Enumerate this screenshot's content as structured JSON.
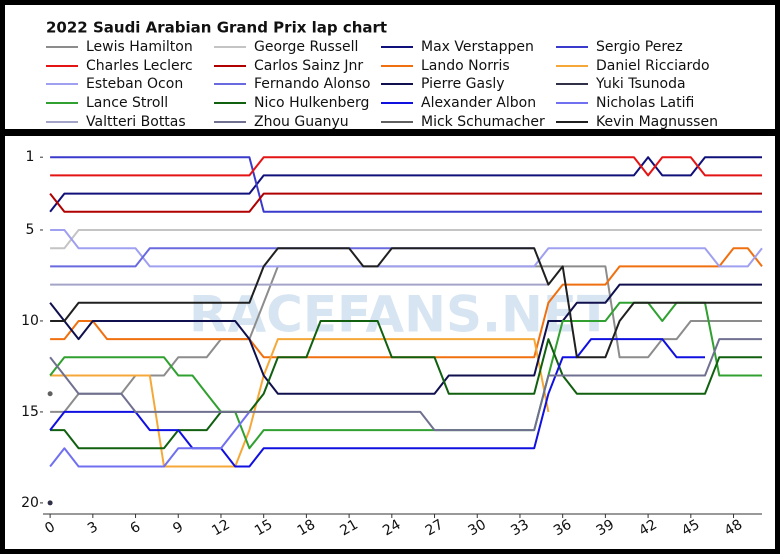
{
  "chart_data": {
    "type": "line",
    "title": "2022 Saudi Arabian Grand Prix lap chart",
    "watermark": "RACEFANS.NET",
    "xlim": [
      -0.5,
      50
    ],
    "xticks": [
      0,
      3,
      6,
      9,
      12,
      15,
      18,
      21,
      24,
      27,
      30,
      33,
      36,
      39,
      42,
      45,
      48
    ],
    "ylim": [
      20.5,
      0
    ],
    "yticks": [
      1,
      5,
      10,
      15,
      20
    ],
    "x": [
      0,
      1,
      2,
      3,
      4,
      5,
      6,
      7,
      8,
      9,
      10,
      11,
      12,
      13,
      14,
      15,
      16,
      17,
      18,
      19,
      20,
      21,
      22,
      23,
      24,
      25,
      26,
      27,
      28,
      29,
      30,
      31,
      32,
      33,
      34,
      35,
      36,
      37,
      38,
      39,
      40,
      41,
      42,
      43,
      44,
      45,
      46,
      47,
      48,
      49,
      50
    ],
    "series": [
      {
        "name": "Lewis Hamilton",
        "color": "#8c8c8c",
        "values": [
          15,
          15,
          14,
          14,
          14,
          14,
          13,
          13,
          13,
          12,
          12,
          12,
          11,
          11,
          11,
          9,
          7,
          7,
          7,
          7,
          7,
          7,
          7,
          7,
          7,
          7,
          7,
          7,
          7,
          7,
          7,
          7,
          7,
          7,
          7,
          7,
          7,
          7,
          7,
          7,
          12,
          12,
          12,
          11,
          11,
          10,
          10,
          10,
          10,
          10,
          10
        ]
      },
      {
        "name": "George Russell",
        "color": "#c4c4c4",
        "values": [
          6,
          6,
          5,
          5,
          5,
          5,
          5,
          5,
          5,
          5,
          5,
          5,
          5,
          5,
          5,
          5,
          5,
          5,
          5,
          5,
          5,
          5,
          5,
          5,
          5,
          5,
          5,
          5,
          5,
          5,
          5,
          5,
          5,
          5,
          5,
          5,
          5,
          5,
          5,
          5,
          5,
          5,
          5,
          5,
          5,
          5,
          5,
          5,
          5,
          5,
          5
        ]
      },
      {
        "name": "Max Verstappen",
        "color": "#10107a",
        "values": [
          4,
          3,
          3,
          3,
          3,
          3,
          3,
          3,
          3,
          3,
          3,
          3,
          3,
          3,
          3,
          2,
          2,
          2,
          2,
          2,
          2,
          2,
          2,
          2,
          2,
          2,
          2,
          2,
          2,
          2,
          2,
          2,
          2,
          2,
          2,
          2,
          2,
          2,
          2,
          2,
          2,
          2,
          1,
          2,
          2,
          2,
          1,
          1,
          1,
          1,
          1
        ]
      },
      {
        "name": "Sergio Perez",
        "color": "#3a3acc",
        "values": [
          1,
          1,
          1,
          1,
          1,
          1,
          1,
          1,
          1,
          1,
          1,
          1,
          1,
          1,
          1,
          4,
          4,
          4,
          4,
          4,
          4,
          4,
          4,
          4,
          4,
          4,
          4,
          4,
          4,
          4,
          4,
          4,
          4,
          4,
          4,
          4,
          4,
          4,
          4,
          4,
          4,
          4,
          4,
          4,
          4,
          4,
          4,
          4,
          4,
          4,
          4
        ]
      },
      {
        "name": "Charles Leclerc",
        "color": "#e41414",
        "values": [
          2,
          2,
          2,
          2,
          2,
          2,
          2,
          2,
          2,
          2,
          2,
          2,
          2,
          2,
          2,
          1,
          1,
          1,
          1,
          1,
          1,
          1,
          1,
          1,
          1,
          1,
          1,
          1,
          1,
          1,
          1,
          1,
          1,
          1,
          1,
          1,
          1,
          1,
          1,
          1,
          1,
          1,
          2,
          1,
          1,
          1,
          2,
          2,
          2,
          2,
          2
        ]
      },
      {
        "name": "Carlos Sainz Jnr",
        "color": "#b00000",
        "values": [
          3,
          4,
          4,
          4,
          4,
          4,
          4,
          4,
          4,
          4,
          4,
          4,
          4,
          4,
          4,
          3,
          3,
          3,
          3,
          3,
          3,
          3,
          3,
          3,
          3,
          3,
          3,
          3,
          3,
          3,
          3,
          3,
          3,
          3,
          3,
          3,
          3,
          3,
          3,
          3,
          3,
          3,
          3,
          3,
          3,
          3,
          3,
          3,
          3,
          3,
          3
        ]
      },
      {
        "name": "Lando Norris",
        "color": "#f07010",
        "values": [
          11,
          11,
          10,
          10,
          11,
          11,
          11,
          11,
          11,
          11,
          11,
          11,
          11,
          11,
          11,
          12,
          12,
          12,
          12,
          12,
          12,
          12,
          12,
          12,
          12,
          12,
          12,
          12,
          12,
          12,
          12,
          12,
          12,
          12,
          12,
          9,
          8,
          8,
          8,
          8,
          7,
          7,
          7,
          7,
          7,
          7,
          7,
          7,
          6,
          6,
          7
        ]
      },
      {
        "name": "Daniel Ricciardo",
        "color": "#f5a838",
        "values": [
          13,
          13,
          13,
          13,
          13,
          13,
          13,
          13,
          18,
          18,
          18,
          18,
          18,
          18,
          16,
          13,
          11,
          11,
          11,
          11,
          11,
          11,
          11,
          11,
          11,
          11,
          11,
          11,
          11,
          11,
          11,
          11,
          11,
          11,
          11,
          15,
          null,
          null,
          null,
          null,
          null,
          null,
          null,
          null,
          null,
          null,
          null,
          null,
          null,
          null,
          null
        ]
      },
      {
        "name": "Esteban Ocon",
        "color": "#a0a0f0",
        "values": [
          5,
          5,
          6,
          6,
          6,
          6,
          6,
          7,
          7,
          7,
          7,
          7,
          7,
          7,
          7,
          7,
          7,
          7,
          7,
          7,
          7,
          7,
          7,
          7,
          7,
          7,
          7,
          7,
          7,
          7,
          7,
          7,
          7,
          7,
          7,
          6,
          6,
          6,
          6,
          6,
          6,
          6,
          6,
          6,
          6,
          6,
          6,
          7,
          7,
          7,
          6
        ]
      },
      {
        "name": "Fernando Alonso",
        "color": "#6a6ae0",
        "values": [
          7,
          7,
          7,
          7,
          7,
          7,
          7,
          6,
          6,
          6,
          6,
          6,
          6,
          6,
          6,
          6,
          6,
          6,
          6,
          6,
          6,
          6,
          6,
          6,
          6,
          6,
          6,
          6,
          6,
          6,
          6,
          6,
          6,
          6,
          6,
          null,
          null,
          null,
          null,
          null,
          null,
          null,
          null,
          null,
          null,
          null,
          null,
          null,
          null,
          null,
          null
        ]
      },
      {
        "name": "Pierre Gasly",
        "color": "#10104e",
        "values": [
          9,
          10,
          11,
          10,
          10,
          10,
          10,
          10,
          10,
          10,
          10,
          10,
          10,
          10,
          11,
          13,
          14,
          14,
          14,
          14,
          14,
          14,
          14,
          14,
          14,
          14,
          14,
          14,
          13,
          13,
          13,
          13,
          13,
          13,
          13,
          10,
          10,
          9,
          9,
          9,
          8,
          8,
          8,
          8,
          8,
          8,
          8,
          8,
          8,
          8,
          8
        ]
      },
      {
        "name": "Yuki Tsunoda",
        "color": "#303048",
        "values": [
          20,
          null,
          null,
          null,
          null,
          null,
          null,
          null,
          null,
          null,
          null,
          null,
          null,
          null,
          null,
          null,
          null,
          null,
          null,
          null,
          null,
          null,
          null,
          null,
          null,
          null,
          null,
          null,
          null,
          null,
          null,
          null,
          null,
          null,
          null,
          null,
          null,
          null,
          null,
          null,
          null,
          null,
          null,
          null,
          null,
          null,
          null,
          null,
          null,
          null,
          null
        ]
      },
      {
        "name": "Lance Stroll",
        "color": "#30a030",
        "values": [
          13,
          12,
          12,
          12,
          12,
          12,
          12,
          12,
          12,
          13,
          13,
          14,
          15,
          15,
          17,
          16,
          16,
          16,
          16,
          16,
          16,
          16,
          16,
          16,
          16,
          16,
          16,
          16,
          16,
          16,
          16,
          16,
          16,
          16,
          16,
          13,
          10,
          10,
          10,
          10,
          9,
          9,
          9,
          10,
          9,
          9,
          9,
          13,
          13,
          13,
          13
        ]
      },
      {
        "name": "Nico Hulkenberg",
        "color": "#106010",
        "values": [
          16,
          16,
          17,
          17,
          17,
          17,
          17,
          17,
          17,
          16,
          16,
          16,
          15,
          15,
          15,
          14,
          12,
          12,
          12,
          10,
          10,
          10,
          10,
          10,
          12,
          12,
          12,
          12,
          14,
          14,
          14,
          14,
          14,
          14,
          14,
          11,
          13,
          14,
          14,
          14,
          14,
          14,
          14,
          14,
          14,
          14,
          14,
          12,
          12,
          12,
          12
        ]
      },
      {
        "name": "Alexander Albon",
        "color": "#1010e0",
        "values": [
          16,
          15,
          15,
          15,
          15,
          15,
          15,
          16,
          16,
          16,
          17,
          17,
          17,
          18,
          18,
          17,
          17,
          17,
          17,
          17,
          17,
          17,
          17,
          17,
          17,
          17,
          17,
          17,
          17,
          17,
          17,
          17,
          17,
          17,
          17,
          14,
          12,
          12,
          11,
          11,
          11,
          11,
          11,
          11,
          12,
          12,
          12,
          null,
          null,
          null,
          null
        ]
      },
      {
        "name": "Nicholas Latifi",
        "color": "#7070f0",
        "values": [
          18,
          17,
          18,
          18,
          18,
          18,
          18,
          18,
          18,
          17,
          17,
          17,
          17,
          16,
          15,
          null,
          null,
          null,
          null,
          null,
          null,
          null,
          null,
          null,
          null,
          null,
          null,
          null,
          null,
          null,
          null,
          null,
          null,
          null,
          null,
          null,
          null,
          null,
          null,
          null,
          null,
          null,
          null,
          null,
          null,
          null,
          null,
          null,
          null,
          null,
          null
        ]
      },
      {
        "name": "Valtteri Bottas",
        "color": "#a4a4c8",
        "values": [
          8,
          8,
          8,
          8,
          8,
          8,
          8,
          8,
          8,
          8,
          8,
          8,
          8,
          8,
          8,
          8,
          8,
          8,
          8,
          8,
          8,
          8,
          8,
          8,
          8,
          8,
          8,
          8,
          8,
          8,
          8,
          8,
          8,
          8,
          8,
          8,
          null,
          null,
          null,
          null,
          null,
          null,
          null,
          null,
          null,
          null,
          null,
          null,
          null,
          null,
          null
        ]
      },
      {
        "name": "Zhou Guanyu",
        "color": "#707090",
        "values": [
          12,
          13,
          14,
          14,
          14,
          14,
          15,
          15,
          15,
          15,
          15,
          15,
          15,
          15,
          15,
          15,
          15,
          15,
          15,
          15,
          15,
          15,
          15,
          15,
          15,
          15,
          15,
          16,
          16,
          16,
          16,
          16,
          16,
          16,
          16,
          13,
          13,
          13,
          13,
          13,
          13,
          13,
          13,
          13,
          13,
          13,
          13,
          11,
          11,
          11,
          11
        ]
      },
      {
        "name": "Mick Schumacher",
        "color": "#606060",
        "values": [
          14,
          null,
          null,
          null,
          null,
          null,
          null,
          null,
          null,
          null,
          null,
          null,
          null,
          null,
          null,
          null,
          null,
          null,
          null,
          null,
          null,
          null,
          null,
          null,
          null,
          null,
          null,
          null,
          null,
          null,
          null,
          null,
          null,
          null,
          null,
          null,
          null,
          null,
          null,
          null,
          null,
          null,
          null,
          null,
          null,
          null,
          null,
          null,
          null,
          null,
          null
        ]
      },
      {
        "name": "Kevin Magnussen",
        "color": "#202020",
        "values": [
          10,
          10,
          9,
          9,
          9,
          9,
          9,
          9,
          9,
          9,
          9,
          9,
          9,
          9,
          9,
          7,
          6,
          6,
          6,
          6,
          6,
          6,
          7,
          7,
          6,
          6,
          6,
          6,
          6,
          6,
          6,
          6,
          6,
          6,
          6,
          8,
          7,
          12,
          12,
          12,
          10,
          9,
          9,
          9,
          9,
          9,
          9,
          9,
          9,
          9,
          9
        ]
      }
    ]
  }
}
